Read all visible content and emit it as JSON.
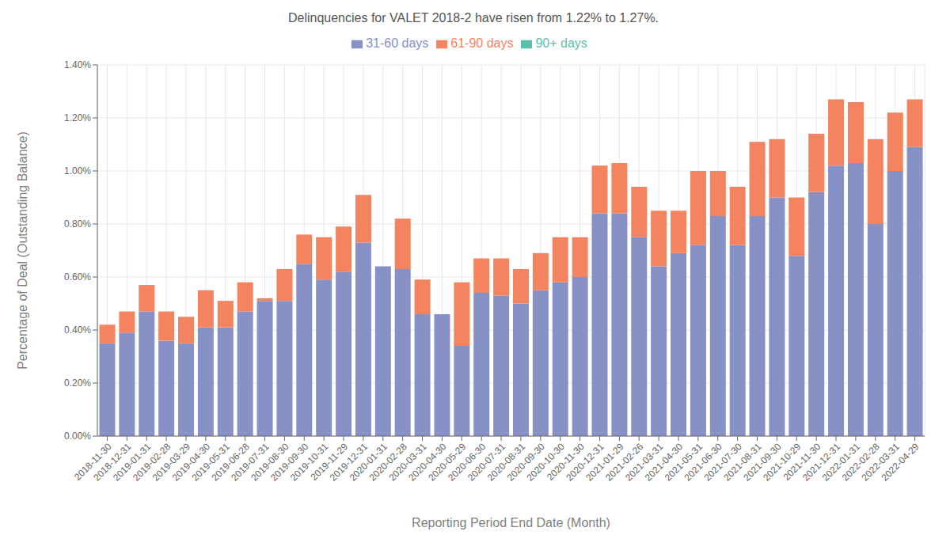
{
  "chart_data": {
    "type": "bar",
    "title": "Delinquencies for VALET 2018-2 have risen from 1.22% to 1.27%.",
    "xlabel": "Reporting Period End Date (Month)",
    "ylabel": "Percentage of Deal (Outstanding Balance)",
    "stacked": true,
    "grid": true,
    "legend": "top",
    "categories": [
      "2018-11-30",
      "2018-12-31",
      "2019-01-31",
      "2019-02-28",
      "2019-03-29",
      "2019-04-30",
      "2019-05-31",
      "2019-06-28",
      "2019-07-31",
      "2019-08-30",
      "2019-09-30",
      "2019-10-31",
      "2019-11-29",
      "2019-12-31",
      "2020-01-31",
      "2020-02-28",
      "2020-03-31",
      "2020-04-30",
      "2020-05-29",
      "2020-06-30",
      "2020-07-31",
      "2020-08-31",
      "2020-09-30",
      "2020-10-30",
      "2020-11-30",
      "2020-12-31",
      "2021-01-29",
      "2021-02-26",
      "2021-03-31",
      "2021-04-30",
      "2021-05-31",
      "2021-06-30",
      "2021-07-30",
      "2021-08-31",
      "2021-09-30",
      "2021-10-29",
      "2021-11-30",
      "2021-12-31",
      "2022-01-31",
      "2022-02-28",
      "2022-03-31",
      "2022-04-29"
    ],
    "series": [
      {
        "name": "31-60 days",
        "color": "#8891c5",
        "values": [
          0.0035,
          0.0039,
          0.0047,
          0.0036,
          0.0035,
          0.0041,
          0.0041,
          0.0047,
          0.0051,
          0.0051,
          0.0065,
          0.0059,
          0.0062,
          0.0073,
          0.0064,
          0.0063,
          0.0046,
          0.0046,
          0.0034,
          0.0054,
          0.0053,
          0.005,
          0.0055,
          0.0058,
          0.006,
          0.0084,
          0.0084,
          0.0075,
          0.0064,
          0.0069,
          0.0072,
          0.0083,
          0.0072,
          0.0083,
          0.009,
          0.0068,
          0.0092,
          0.0102,
          0.0103,
          0.008,
          0.01,
          0.0109
        ]
      },
      {
        "name": "61-90 days",
        "color": "#f4845f",
        "values": [
          0.0007,
          0.0008,
          0.001,
          0.0011,
          0.001,
          0.0014,
          0.001,
          0.0011,
          0.0001,
          0.0012,
          0.0011,
          0.0016,
          0.0017,
          0.0018,
          0.0,
          0.0019,
          0.0013,
          0.0,
          0.0024,
          0.0013,
          0.0014,
          0.0013,
          0.0014,
          0.0017,
          0.0015,
          0.0018,
          0.0019,
          0.0019,
          0.0021,
          0.0016,
          0.0028,
          0.0017,
          0.0022,
          0.0028,
          0.0022,
          0.0022,
          0.0022,
          0.0025,
          0.0023,
          0.0032,
          0.0022,
          0.0018
        ]
      },
      {
        "name": "90+ days",
        "color": "#5bbfad",
        "values": [
          0.0,
          0.0,
          0.0,
          0.0,
          0.0,
          0.0,
          0.0,
          0.0,
          0.0,
          0.0,
          0.0,
          0.0,
          0.0,
          0.0,
          0.0,
          0.0,
          0.0,
          0.0,
          0.0,
          0.0,
          0.0,
          0.0,
          0.0,
          0.0,
          0.0,
          0.0,
          0.0,
          0.0,
          0.0,
          0.0,
          0.0,
          0.0,
          0.0,
          0.0,
          0.0,
          0.0,
          0.0,
          0.0,
          0.0,
          0.0,
          0.0,
          0.0
        ]
      }
    ],
    "ylim": [
      0,
      0.014
    ],
    "yticks": [
      {
        "value": 0.0,
        "label": "0.00%"
      },
      {
        "value": 0.002,
        "label": "0.20%"
      },
      {
        "value": 0.004,
        "label": "0.40%"
      },
      {
        "value": 0.006,
        "label": "0.60%"
      },
      {
        "value": 0.008,
        "label": "0.80%"
      },
      {
        "value": 0.01,
        "label": "1.00%"
      },
      {
        "value": 0.012,
        "label": "1.20%"
      },
      {
        "value": 0.014,
        "label": "1.40%"
      }
    ]
  }
}
